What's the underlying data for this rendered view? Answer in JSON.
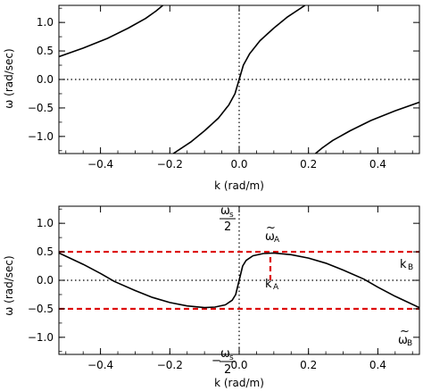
{
  "chart_data": [
    {
      "type": "line",
      "xlabel": "k (rad/m)",
      "ylabel": "ω (rad/sec)",
      "xlim": [
        -0.52,
        0.52
      ],
      "ylim": [
        -1.3,
        1.3
      ],
      "xticks": [
        -0.4,
        -0.2,
        0.0,
        0.2,
        0.4
      ],
      "xtick_labels": [
        "−0.4",
        "−0.2",
        "0.0",
        "0.2",
        "0.4"
      ],
      "yticks": [
        -1.0,
        -0.5,
        0.0,
        0.5,
        1.0
      ],
      "ytick_labels": [
        "−1.0",
        "−0.5",
        "0.0",
        "0.5",
        "1.0"
      ],
      "grid": false,
      "reference_lines": {
        "x": 0,
        "y": 0,
        "style": "dotted",
        "color": "#000000"
      },
      "series": [
        {
          "color": "#000000",
          "points": [
            [
              -0.52,
              0.4
            ],
            [
              -0.45,
              0.55
            ],
            [
              -0.38,
              0.72
            ],
            [
              -0.32,
              0.9
            ],
            [
              -0.27,
              1.07
            ],
            [
              -0.24,
              1.2
            ],
            [
              -0.22,
              1.3
            ]
          ]
        },
        {
          "color": "#000000",
          "points": [
            [
              -0.19,
              -1.3
            ],
            [
              -0.14,
              -1.1
            ],
            [
              -0.1,
              -0.9
            ],
            [
              -0.06,
              -0.68
            ],
            [
              -0.03,
              -0.45
            ],
            [
              -0.012,
              -0.25
            ],
            [
              0.0,
              0.0
            ],
            [
              0.012,
              0.25
            ],
            [
              0.03,
              0.45
            ],
            [
              0.06,
              0.68
            ],
            [
              0.1,
              0.9
            ],
            [
              0.14,
              1.1
            ],
            [
              0.19,
              1.3
            ]
          ]
        },
        {
          "color": "#000000",
          "points": [
            [
              0.22,
              -1.3
            ],
            [
              0.24,
              -1.2
            ],
            [
              0.27,
              -1.07
            ],
            [
              0.32,
              -0.9
            ],
            [
              0.38,
              -0.72
            ],
            [
              0.45,
              -0.55
            ],
            [
              0.52,
              -0.4
            ]
          ]
        }
      ]
    },
    {
      "type": "line",
      "xlabel": "k (rad/m)",
      "ylabel": "ω (rad/sec)",
      "xlim": [
        -0.52,
        0.52
      ],
      "ylim": [
        -1.3,
        1.3
      ],
      "xticks": [
        -0.4,
        -0.2,
        0.0,
        0.2,
        0.4
      ],
      "xtick_labels": [
        "−0.4",
        "−0.2",
        "0.0",
        "0.2",
        "0.4"
      ],
      "yticks": [
        -1.0,
        -0.5,
        0.0,
        0.5,
        1.0
      ],
      "ytick_labels": [
        "−1.0",
        "−0.5",
        "0.0",
        "0.5",
        "1.0"
      ],
      "grid": false,
      "reference_lines": {
        "x": 0,
        "y": 0,
        "style": "dotted",
        "color": "#000000"
      },
      "series": [
        {
          "color": "#000000",
          "points": [
            [
              -0.52,
              0.48
            ],
            [
              -0.45,
              0.28
            ],
            [
              -0.4,
              0.12
            ],
            [
              -0.36,
              -0.02
            ],
            [
              -0.3,
              -0.18
            ],
            [
              -0.25,
              -0.3
            ],
            [
              -0.2,
              -0.39
            ],
            [
              -0.15,
              -0.45
            ],
            [
              -0.1,
              -0.48
            ],
            [
              -0.07,
              -0.47
            ],
            [
              -0.04,
              -0.43
            ],
            [
              -0.02,
              -0.35
            ],
            [
              -0.01,
              -0.25
            ],
            [
              0.0,
              0.0
            ],
            [
              0.01,
              0.25
            ],
            [
              0.02,
              0.35
            ],
            [
              0.04,
              0.43
            ],
            [
              0.07,
              0.47
            ],
            [
              0.1,
              0.48
            ],
            [
              0.15,
              0.45
            ],
            [
              0.2,
              0.39
            ],
            [
              0.25,
              0.3
            ],
            [
              0.3,
              0.18
            ],
            [
              0.36,
              0.02
            ],
            [
              0.4,
              -0.12
            ],
            [
              0.45,
              -0.28
            ],
            [
              0.52,
              -0.48
            ]
          ]
        }
      ],
      "marker_lines": [
        {
          "y": 0.5,
          "color": "#dd0000",
          "style": "dashed"
        },
        {
          "y": -0.5,
          "color": "#dd0000",
          "style": "dashed"
        },
        {
          "x": 0.09,
          "y_from": 0.0,
          "y_to": 0.48,
          "color": "#dd0000",
          "style": "dashed"
        }
      ],
      "annotations": {
        "omega_s_top": {
          "tilde": "",
          "main": "ω",
          "sub": "s",
          "over": "2"
        },
        "omega_s_bottom": {
          "tilde": "",
          "main": "−",
          "frac_top": "ω",
          "sub": "s",
          "over": "2"
        },
        "omega_a": {
          "tilde": "~",
          "main": "ω",
          "sub": "A"
        },
        "omega_b": {
          "tilde": "~",
          "main": "ω",
          "sub": "B"
        },
        "k_a": {
          "main": "k",
          "sub": "A"
        },
        "k_b": {
          "main": "k",
          "sub": "B"
        }
      }
    }
  ]
}
